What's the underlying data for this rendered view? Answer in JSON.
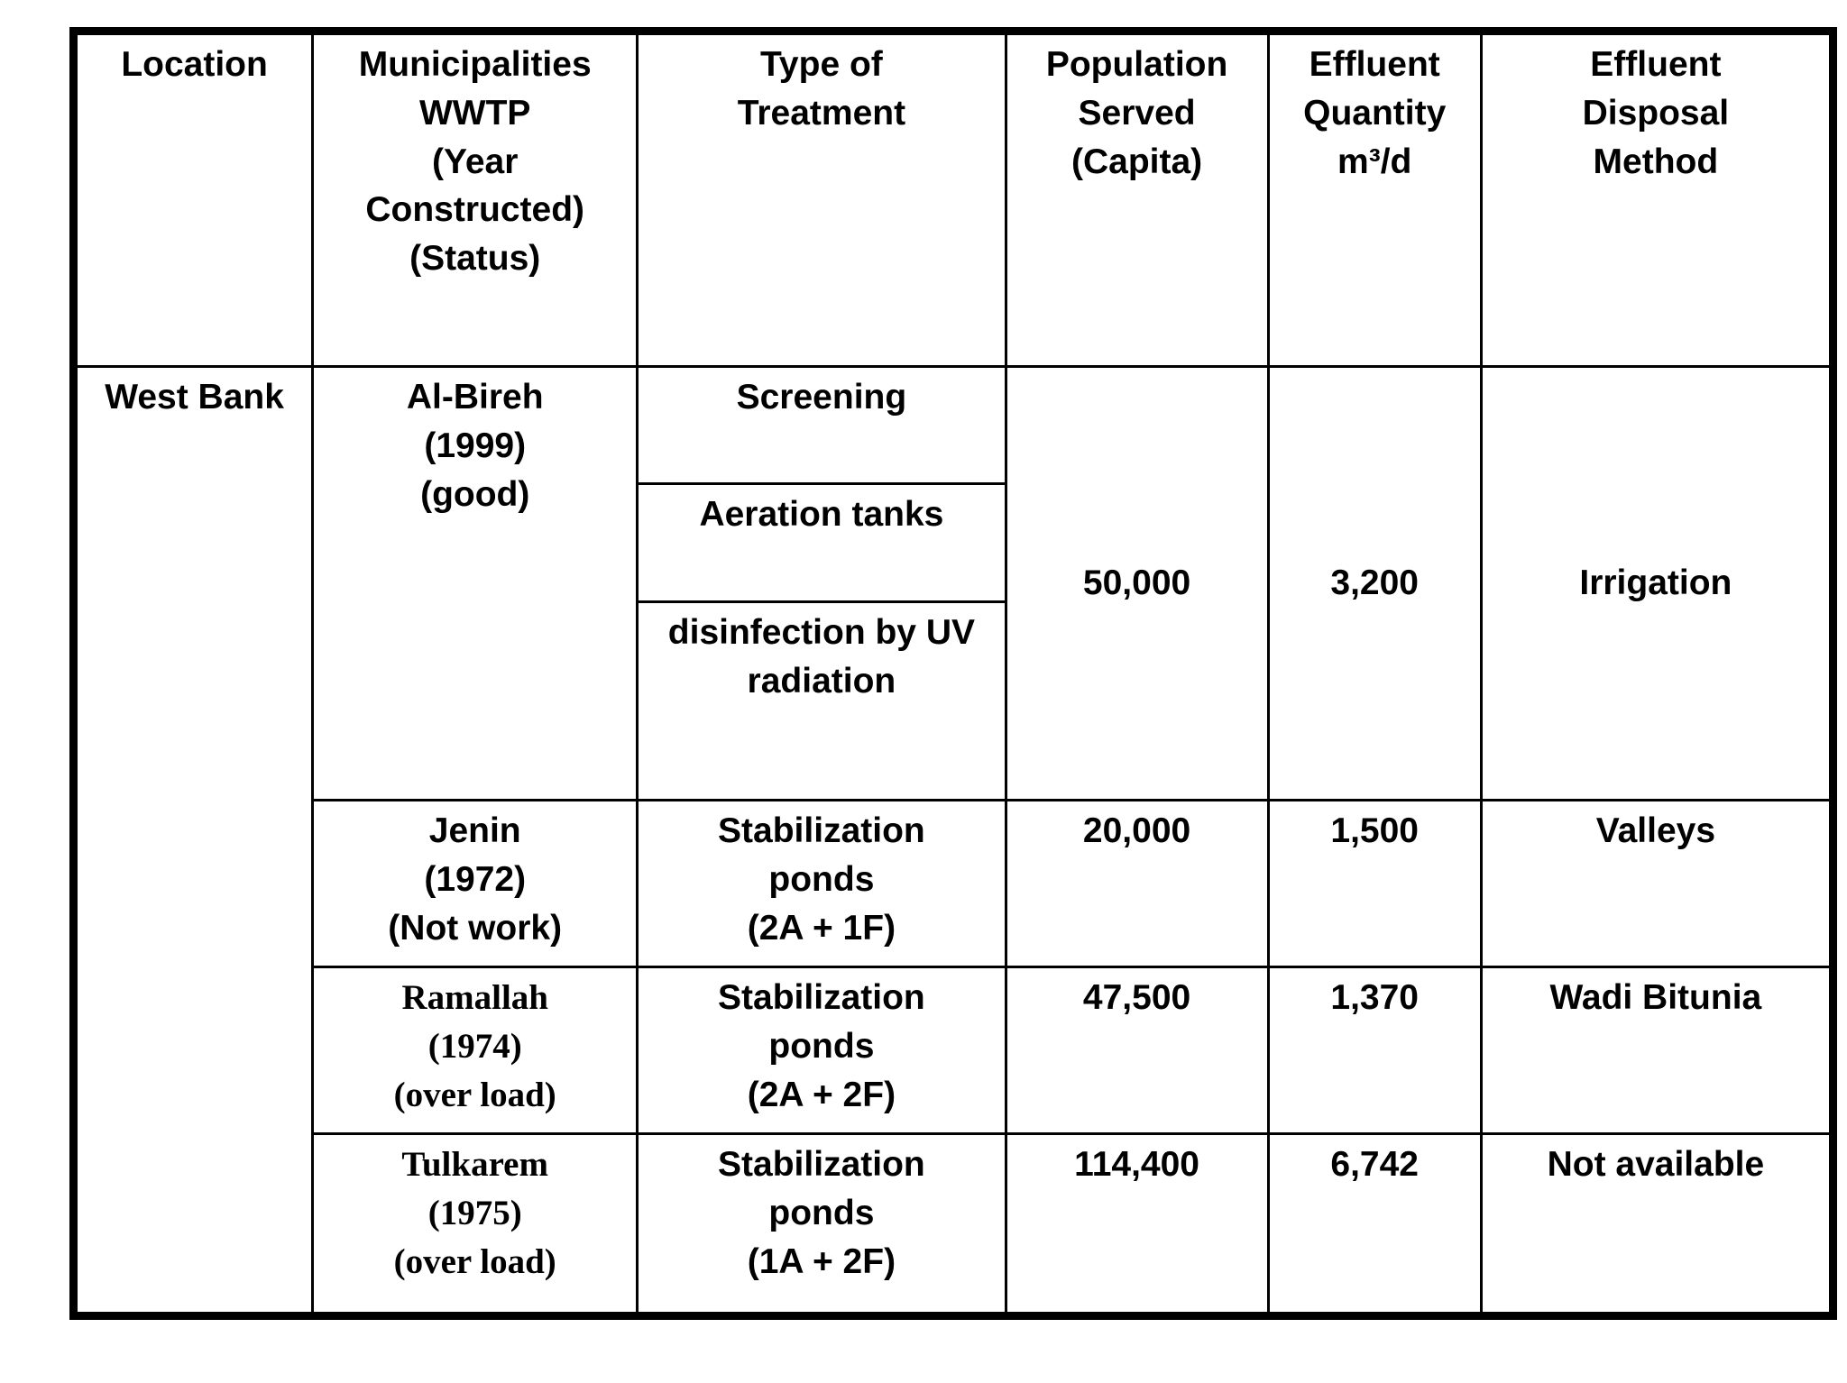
{
  "page": {
    "background_color": "#ffffff",
    "text_color": "#000000",
    "border_color": "#000000"
  },
  "table": {
    "columns": [
      "Location",
      "Municipalities\nWWTP\n(Year\nConstructed)\n(Status)",
      "Type of\nTreatment",
      "Population\nServed\n(Capita)",
      "Effluent\nQuantity\nm³/d",
      "Effluent\nDisposal\nMethod"
    ],
    "location": "West Bank",
    "rows": [
      {
        "municipality": "Al-Bireh\n(1999)\n(good)",
        "treatments": [
          "Screening",
          "Aeration tanks",
          "disinfection by UV\nradiation"
        ],
        "population_served": "50,000",
        "effluent_quantity": "3,200",
        "disposal_method": "Irrigation"
      },
      {
        "municipality": "Jenin\n(1972)\n(Not work)",
        "treatments": [
          "Stabilization\nponds\n(2A + 1F)"
        ],
        "population_served": "20,000",
        "effluent_quantity": "1,500",
        "disposal_method": "Valleys"
      },
      {
        "municipality": "Ramallah\n(1974)\n(over load)",
        "treatments": [
          "Stabilization\nponds\n(2A + 2F)"
        ],
        "population_served": "47,500",
        "effluent_quantity": "1,370",
        "disposal_method": "Wadi Bitunia"
      },
      {
        "municipality": "Tulkarem\n(1975)\n(over load)",
        "treatments": [
          "Stabilization\nponds\n(1A + 2F)"
        ],
        "population_served": "114,400",
        "effluent_quantity": "6,742",
        "disposal_method": "Not available"
      }
    ]
  }
}
